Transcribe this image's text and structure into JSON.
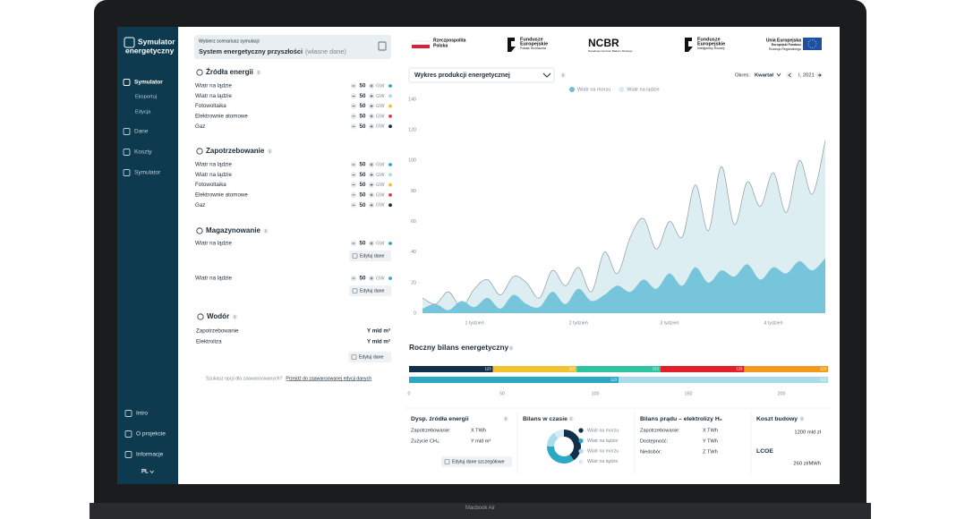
{
  "device_label": "Macbook Air",
  "sidebar": {
    "logo": [
      "Symulator",
      "energetyczny"
    ],
    "nav": [
      "Symulator",
      "Eksportuj",
      "Edycja",
      "Dane",
      "Koszty",
      "Symulator"
    ],
    "bottom_nav": [
      "Intro",
      "O projekcie",
      "Informacje"
    ],
    "language": "PL"
  },
  "scenario": {
    "label": "Wybierz scenariusz symulacji",
    "name": "System energetyczny przyszłości",
    "note": "(własne dane)"
  },
  "sections": [
    {
      "title": "Źródła energii",
      "rows": [
        {
          "label": "Wiatr na lądzie",
          "value": 50,
          "unit": "GW",
          "color": "#2aa8c4"
        },
        {
          "label": "Wiatr na lądzie",
          "value": 50,
          "unit": "GW",
          "color": "#a9dcea"
        },
        {
          "label": "Fotowoltaika",
          "value": 50,
          "unit": "GW",
          "color": "#f2c230"
        },
        {
          "label": "Elektrownie atomowe",
          "value": 50,
          "unit": "GW",
          "color": "#e03a3a"
        },
        {
          "label": "Gaz",
          "value": 50,
          "unit": "GW",
          "color": "#13304a"
        }
      ]
    },
    {
      "title": "Zapotrzebowanie",
      "rows": [
        {
          "label": "Wiatr na lądzie",
          "value": 50,
          "unit": "GW",
          "color": "#2aa8c4"
        },
        {
          "label": "Wiatr na lądzie",
          "value": 50,
          "unit": "GW",
          "color": "#a9dcea"
        },
        {
          "label": "Fotowoltaika",
          "value": 50,
          "unit": "GW",
          "color": "#f2c230"
        },
        {
          "label": "Elektrownie atomowe",
          "value": 50,
          "unit": "GW",
          "color": "#e03a3a"
        },
        {
          "label": "Gaz",
          "value": 50,
          "unit": "GW",
          "color": "#13304a"
        }
      ]
    },
    {
      "title": "Magazynowanie",
      "rows": [
        {
          "label": "Wiatr na lądzie",
          "value": 50,
          "unit": "GW",
          "color": "#2aa8c4",
          "button": "Edytuj dane"
        },
        {
          "label": "Wiatr na lądzie",
          "value": 50,
          "unit": "GW",
          "color": "#2aa8c4",
          "button": "Edytuj dane"
        }
      ]
    }
  ],
  "hydrogen": {
    "title": "Wodór",
    "rows": [
      {
        "label": "Zapotrzebowanie",
        "value": "Y mld m³"
      },
      {
        "label": "Elektroliza",
        "value": "Y mld m³"
      }
    ],
    "button": "Edytuj dane"
  },
  "advanced": {
    "question": "Szukasz opcji dla zaawansowanych?",
    "link": "Przejdź do zaawansowanej edycji danych"
  },
  "logos": [
    {
      "lines": [
        "Rzeczpospolita",
        "Polska"
      ]
    },
    {
      "lines": [
        "Fundusze",
        "Europejskie",
        "Polska Techniczna"
      ]
    },
    {
      "lines": [
        "NCBR",
        "Narodowe Centrum Badań i Rozwoju"
      ]
    },
    {
      "lines": [
        "Fundusze",
        "Europejskie",
        "Inteligentny Rozwój"
      ]
    },
    {
      "lines": [
        "Unia Europejska",
        "Europejski Fundusz",
        "Rozwoju Regionalnego"
      ]
    }
  ],
  "production_chart": {
    "type": "area",
    "selector": "Wykres produkcji energetycznej",
    "period_label": "Okres:",
    "period": "Kwartał",
    "period_value": "I, 2021",
    "categories": [
      null,
      null,
      null,
      null,
      "1 tydzień",
      null,
      null,
      null,
      null,
      null,
      null,
      null,
      "2 tydzień",
      null,
      null,
      null,
      null,
      null,
      null,
      "3 tydzień",
      null,
      null,
      null,
      null,
      null,
      null,
      null,
      "4 tydzień",
      null,
      null,
      null,
      null
    ],
    "series": [
      {
        "name": "Wiatr na morzu",
        "color": "#6cc0d8",
        "values": [
          3,
          6,
          2,
          8,
          4,
          10,
          3,
          12,
          6,
          4,
          14,
          6,
          16,
          8,
          12,
          18,
          14,
          22,
          16,
          26,
          18,
          30,
          20,
          28,
          24,
          32,
          22,
          30,
          26,
          34,
          28,
          36
        ]
      },
      {
        "name": "Wiatr na lądzie",
        "color": "#d9ecf2",
        "values": [
          10,
          6,
          14,
          4,
          16,
          22,
          12,
          24,
          20,
          10,
          28,
          18,
          30,
          14,
          40,
          26,
          50,
          62,
          42,
          60,
          50,
          84,
          54,
          96,
          58,
          86,
          70,
          92,
          66,
          100,
          78,
          113
        ]
      }
    ],
    "ylim": [
      0,
      140
    ],
    "yticks": [
      0,
      20,
      40,
      60,
      80,
      100,
      120,
      140
    ]
  },
  "annual_balance": {
    "type": "bar",
    "title": "Roczny bilans energetyczny",
    "bars": [
      [
        {
          "value": 123,
          "color": "#13304a"
        },
        {
          "value": 123,
          "color": "#f2c230"
        },
        {
          "value": 123,
          "color": "#2ec4a0"
        },
        {
          "value": 123,
          "color": "#e0202a"
        },
        {
          "value": 123,
          "color": "#f39a1e"
        }
      ],
      [
        {
          "value": 123,
          "color": "#2aa8c4"
        },
        {
          "value": 123,
          "color": "#a9dcea"
        }
      ]
    ],
    "xlim": [
      0,
      225
    ],
    "xticks": [
      0,
      50,
      100,
      150,
      200
    ]
  },
  "cards": {
    "sources": {
      "title": "Dysp. źródła energii",
      "rows": [
        [
          "Zapotrzebowanie:",
          "X TWh"
        ],
        [
          "Zużycie CH₄:",
          "Y mld m³"
        ]
      ],
      "button": "Edytuj dane szczegółowe"
    },
    "balance_time": {
      "type": "pie",
      "title": "Bilans w czasie",
      "series": [
        {
          "name": "Wiatr na morzu",
          "color": "#13304a",
          "value": 40
        },
        {
          "name": "Wiatr na lądzie",
          "color": "#2aa8c4",
          "value": 35
        },
        {
          "name": "Wiatr na morzu",
          "color": "#a9dcea",
          "value": 15
        },
        {
          "name": "Wiatr na lądzie",
          "color": "#d9ecf2",
          "value": 10
        }
      ]
    },
    "electrolysis": {
      "title": "Bilans prądu – elektrolizy H₂",
      "rows": [
        [
          "Zapotrzebowanie:",
          "X TWh"
        ],
        [
          "Dostępność:",
          "Y TWh"
        ],
        [
          "Niedobór:",
          "Z TWh"
        ]
      ]
    },
    "cost": {
      "title": "Koszt budowy",
      "value": "1200 mld zł",
      "lcoe_label": "LCOE",
      "lcoe_value": "260 zł/MWh"
    }
  }
}
